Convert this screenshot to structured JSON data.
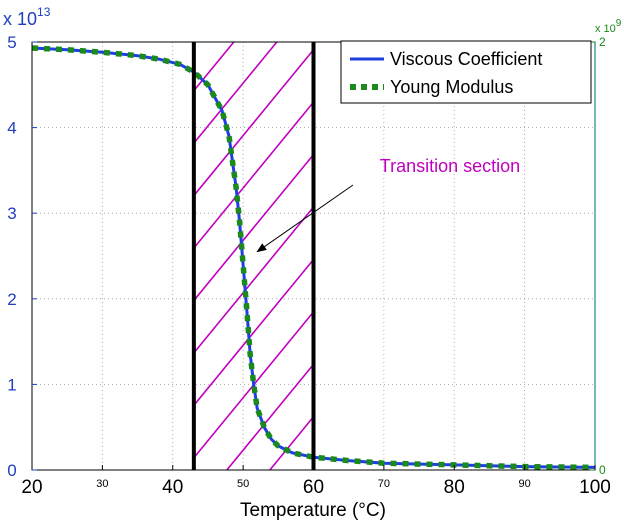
{
  "chart_data": {
    "type": "line",
    "xlabel": "Temperature (°C)",
    "xlim": [
      20,
      100
    ],
    "ylim": [
      0,
      5
    ],
    "y2lim": [
      0,
      2
    ],
    "x_ticks_major": [
      20,
      40,
      60,
      80,
      100
    ],
    "x_ticks_minor": [
      30,
      50,
      70,
      90
    ],
    "y_ticks": [
      0,
      1,
      2,
      3,
      4,
      5
    ],
    "y2_ticks": [
      0,
      2
    ],
    "y_multiplier": "x 10",
    "y_exponent": "13",
    "y2_multiplier": "x 10",
    "y2_exponent": "9",
    "grid": true,
    "legend_position": "top-right",
    "series": [
      {
        "name": "Viscous Coefficient",
        "color": "#1f3fe0",
        "style": "solid",
        "x": [
          20,
          25,
          30,
          35,
          38,
          41,
          43,
          45,
          47,
          48,
          49,
          49.5,
          50,
          50.5,
          51,
          51.5,
          52,
          53,
          54,
          55,
          57,
          60,
          65,
          70,
          80,
          90,
          100
        ],
        "y": [
          4.93,
          4.91,
          4.88,
          4.84,
          4.8,
          4.74,
          4.65,
          4.5,
          4.2,
          3.9,
          3.3,
          2.9,
          2.4,
          1.9,
          1.35,
          1.0,
          0.72,
          0.5,
          0.36,
          0.28,
          0.2,
          0.15,
          0.11,
          0.08,
          0.06,
          0.04,
          0.03
        ]
      },
      {
        "name": "Young Modulus",
        "color": "#1a8a1a",
        "style": "dotted",
        "x": [
          20,
          25,
          30,
          35,
          38,
          41,
          43,
          45,
          47,
          48,
          49,
          49.5,
          50,
          50.5,
          51,
          51.5,
          52,
          53,
          54,
          55,
          57,
          60,
          65,
          70,
          80,
          90,
          100
        ],
        "y": [
          4.93,
          4.91,
          4.88,
          4.84,
          4.8,
          4.74,
          4.65,
          4.5,
          4.2,
          3.9,
          3.3,
          2.9,
          2.4,
          1.9,
          1.35,
          1.0,
          0.72,
          0.5,
          0.36,
          0.28,
          0.2,
          0.15,
          0.11,
          0.08,
          0.06,
          0.04,
          0.03
        ]
      }
    ],
    "vertical_lines_x": [
      43,
      60
    ],
    "shaded_region": {
      "x": [
        43,
        60
      ],
      "pattern": "hatched",
      "color": "#c000c0"
    },
    "annotation": {
      "text": "Transition section",
      "arrow_to": [
        52,
        2.55
      ]
    }
  }
}
